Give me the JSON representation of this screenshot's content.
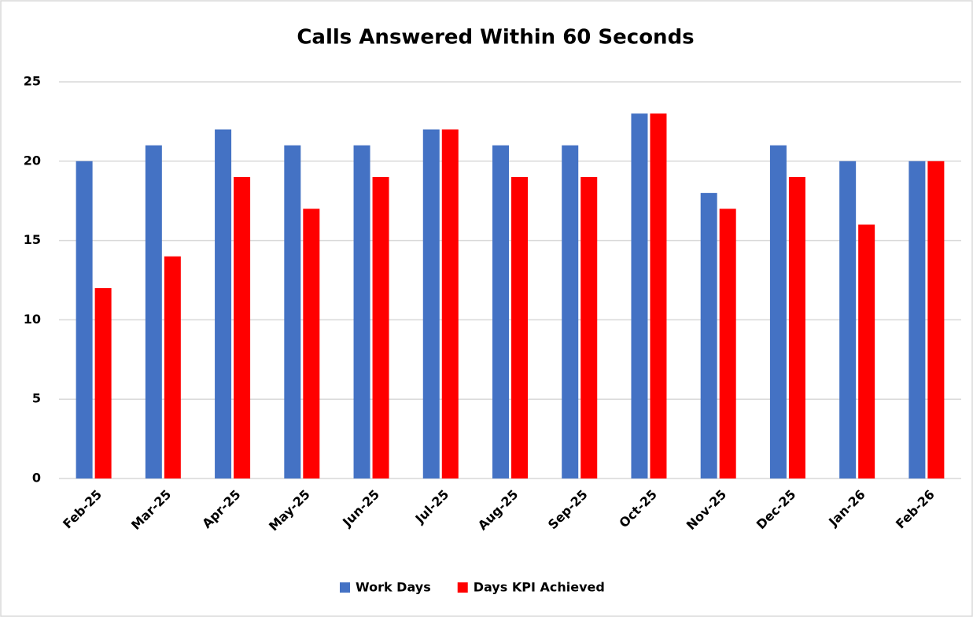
{
  "chart_data": {
    "type": "bar",
    "title": "Calls Answered Within 60 Seconds",
    "categories": [
      "Feb-25",
      "Mar-25",
      "Apr-25",
      "May-25",
      "Jun-25",
      "Jul-25",
      "Aug-25",
      "Sep-25",
      "Oct-25",
      "Nov-25",
      "Dec-25",
      "Jan-26",
      "Feb-26"
    ],
    "series": [
      {
        "name": "Work Days",
        "color": "#4472c4",
        "values": [
          20,
          21,
          22,
          21,
          21,
          22,
          21,
          21,
          23,
          18,
          21,
          20,
          20
        ]
      },
      {
        "name": "Days KPI Achieved",
        "color": "#ff0000",
        "values": [
          12,
          14,
          19,
          17,
          19,
          22,
          19,
          19,
          23,
          17,
          19,
          16,
          20
        ]
      }
    ],
    "ylim": [
      0,
      25
    ],
    "yticks": [
      0,
      5,
      10,
      15,
      20,
      25
    ],
    "grid": true,
    "legend": "bottom"
  }
}
